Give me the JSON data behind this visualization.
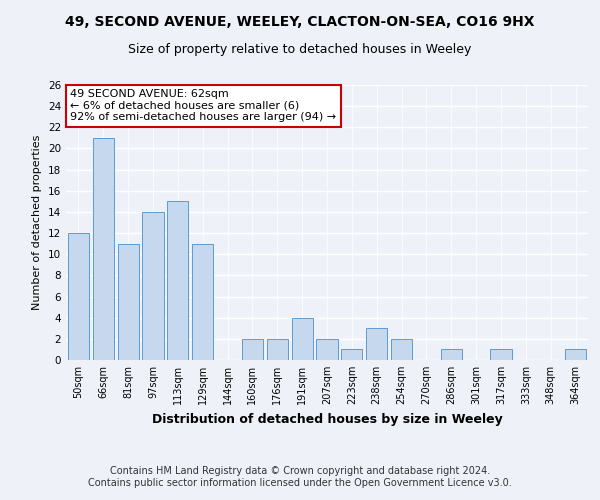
{
  "title": "49, SECOND AVENUE, WEELEY, CLACTON-ON-SEA, CO16 9HX",
  "subtitle": "Size of property relative to detached houses in Weeley",
  "xlabel": "Distribution of detached houses by size in Weeley",
  "ylabel": "Number of detached properties",
  "categories": [
    "50sqm",
    "66sqm",
    "81sqm",
    "97sqm",
    "113sqm",
    "129sqm",
    "144sqm",
    "160sqm",
    "176sqm",
    "191sqm",
    "207sqm",
    "223sqm",
    "238sqm",
    "254sqm",
    "270sqm",
    "286sqm",
    "301sqm",
    "317sqm",
    "333sqm",
    "348sqm",
    "364sqm"
  ],
  "values": [
    12,
    21,
    11,
    14,
    15,
    11,
    0,
    2,
    2,
    4,
    2,
    1,
    3,
    2,
    0,
    1,
    0,
    1,
    0,
    0,
    1
  ],
  "bar_color": "#c5d8ed",
  "bar_edge_color": "#5b9bd5",
  "annotation_line1": "49 SECOND AVENUE: 62sqm",
  "annotation_line2": "← 6% of detached houses are smaller (6)",
  "annotation_line3": "92% of semi-detached houses are larger (94) →",
  "annotation_box_color": "#ffffff",
  "annotation_box_edge_color": "#cc0000",
  "ylim": [
    0,
    26
  ],
  "yticks": [
    0,
    2,
    4,
    6,
    8,
    10,
    12,
    14,
    16,
    18,
    20,
    22,
    24,
    26
  ],
  "footer_line1": "Contains HM Land Registry data © Crown copyright and database right 2024.",
  "footer_line2": "Contains public sector information licensed under the Open Government Licence v3.0.",
  "background_color": "#eef2f8",
  "grid_color": "#ffffff",
  "title_fontsize": 10,
  "subtitle_fontsize": 9,
  "annotation_fontsize": 8,
  "footer_fontsize": 7,
  "ylabel_fontsize": 8,
  "xlabel_fontsize": 9
}
